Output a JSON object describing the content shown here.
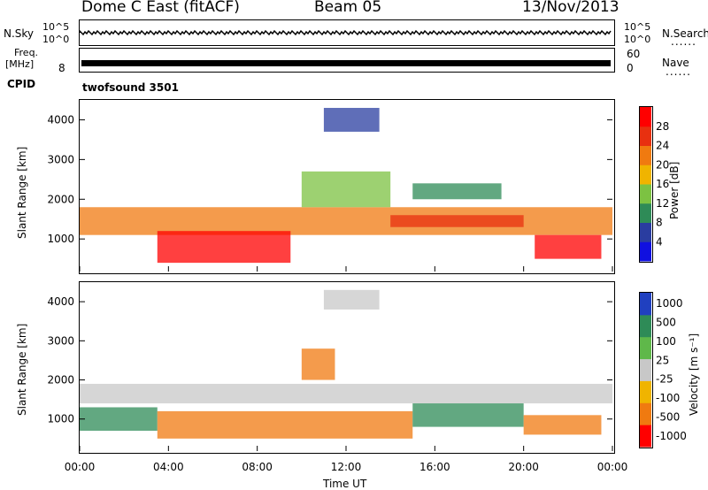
{
  "header": {
    "station": "Dome C East (fitACF)",
    "beam": "Beam 05",
    "date": "13/Nov/2013"
  },
  "sidebars": {
    "nsky": "N.Sky",
    "nsearch": "N.Search",
    "freq": "Freq.",
    "freq_unit": "[MHz]",
    "nave": "Nave",
    "cpid": "CPID",
    "cpid_value": "twofsound 3501",
    "nsky_top": "10^5",
    "nsky_bottom": "10^0",
    "nsearch_top": "10^5",
    "nsearch_bottom": "10^0",
    "freq_top": "",
    "freq_bottom": "8",
    "nave_top": "60",
    "nave_bottom": "0",
    "dots": "......"
  },
  "chart_data": [
    {
      "type": "heatmap",
      "name": "power",
      "ylabel": "Slant Range [km]",
      "xlim": [
        0,
        24
      ],
      "ylim": [
        180,
        4500
      ],
      "yticks": [
        "1000",
        "2000",
        "3000",
        "4000"
      ],
      "ytick_values": [
        1000,
        2000,
        3000,
        4000
      ],
      "colorbar_label": "Power [dB]",
      "colorbar_ticks": [
        "4",
        "8",
        "12",
        "16",
        "20",
        "24",
        "28"
      ],
      "colorbar_values": [
        4,
        8,
        12,
        16,
        20,
        24,
        28
      ],
      "colorbar_colors": [
        "#1010e0",
        "#2a3da0",
        "#2e8b57",
        "#7cc242",
        "#f0b400",
        "#f07a10",
        "#e83010",
        "#ff0000"
      ],
      "bands": [
        {
          "x": [
            0,
            24
          ],
          "y": [
            1100,
            1800
          ],
          "color": "#f07a10"
        },
        {
          "x": [
            3.5,
            9.5
          ],
          "y": [
            400,
            1200
          ],
          "color": "#ff0000"
        },
        {
          "x": [
            10,
            14
          ],
          "y": [
            1800,
            2700
          ],
          "color": "#7cc242"
        },
        {
          "x": [
            15,
            19
          ],
          "y": [
            2000,
            2400
          ],
          "color": "#2e8b57"
        },
        {
          "x": [
            11,
            13.5
          ],
          "y": [
            3700,
            4300
          ],
          "color": "#2a3da0"
        },
        {
          "x": [
            20.5,
            23.5
          ],
          "y": [
            500,
            1100
          ],
          "color": "#ff0000"
        },
        {
          "x": [
            14,
            20
          ],
          "y": [
            1300,
            1600
          ],
          "color": "#e83010"
        }
      ]
    },
    {
      "type": "heatmap",
      "name": "velocity",
      "ylabel": "Slant Range [km]",
      "xlabel": "Time UT",
      "xlim": [
        0,
        24
      ],
      "ylim": [
        180,
        4500
      ],
      "yticks": [
        "1000",
        "2000",
        "3000",
        "4000"
      ],
      "ytick_values": [
        1000,
        2000,
        3000,
        4000
      ],
      "xticks": [
        "00:00",
        "04:00",
        "08:00",
        "12:00",
        "16:00",
        "20:00",
        "00:00"
      ],
      "xtick_values": [
        0,
        4,
        8,
        12,
        16,
        20,
        24
      ],
      "colorbar_label": "Velocity [m s⁻¹]",
      "colorbar_ticks": [
        "1000",
        "500",
        "100",
        "25",
        "-25",
        "-100",
        "-500",
        "-1000"
      ],
      "colorbar_colors": [
        "#2040c0",
        "#2e8b57",
        "#5fb84a",
        "#c8c8c8",
        "#f0b400",
        "#f07a10",
        "#ff0000"
      ],
      "bands": [
        {
          "x": [
            0,
            24
          ],
          "y": [
            1400,
            1900
          ],
          "color": "#c8c8c8"
        },
        {
          "x": [
            0,
            3.5
          ],
          "y": [
            700,
            1300
          ],
          "color": "#2e8b57"
        },
        {
          "x": [
            3.5,
            15
          ],
          "y": [
            500,
            1200
          ],
          "color": "#f07a10"
        },
        {
          "x": [
            15,
            20
          ],
          "y": [
            800,
            1400
          ],
          "color": "#2e8b57"
        },
        {
          "x": [
            20,
            23.5
          ],
          "y": [
            600,
            1100
          ],
          "color": "#f07a10"
        },
        {
          "x": [
            10,
            11.5
          ],
          "y": [
            2000,
            2800
          ],
          "color": "#f07a10"
        },
        {
          "x": [
            11,
            13.5
          ],
          "y": [
            3800,
            4300
          ],
          "color": "#c8c8c8"
        }
      ]
    }
  ]
}
